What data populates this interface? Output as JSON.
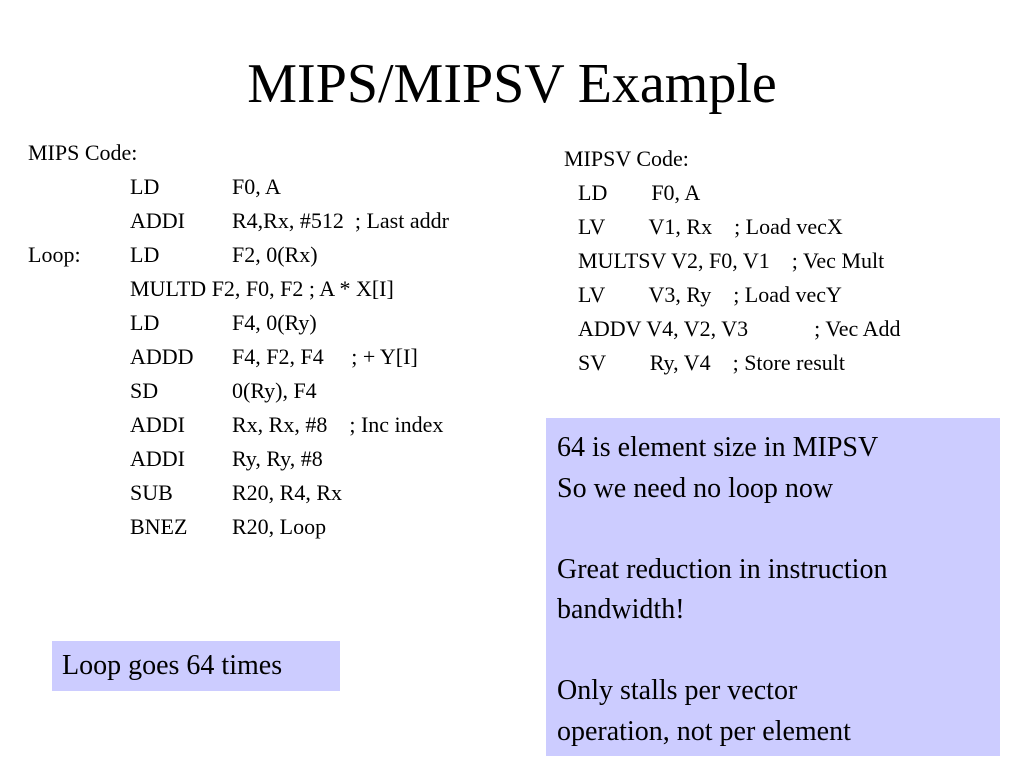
{
  "title": "MIPS/MIPSV Example",
  "mips": {
    "heading": "MIPS Code:",
    "lines": [
      {
        "label": "",
        "op": "LD",
        "args": "F0, A"
      },
      {
        "label": "",
        "op": "ADDI",
        "args": "R4,Rx, #512  ; Last addr"
      },
      {
        "label": "Loop:",
        "op": "LD",
        "args": "F2, 0(Rx)"
      },
      {
        "label": "",
        "op": "MULTD F2, F0, F2 ; A * X[I]",
        "args": ""
      },
      {
        "label": "",
        "op": "LD",
        "args": "F4, 0(Ry)"
      },
      {
        "label": "",
        "op": "ADDD",
        "args": "F4, F2, F4     ; + Y[I]"
      },
      {
        "label": "",
        "op": "SD",
        "args": "0(Ry), F4"
      },
      {
        "label": "",
        "op": "ADDI",
        "args": "Rx, Rx, #8    ; Inc index"
      },
      {
        "label": "",
        "op": "ADDI",
        "args": "Ry, Ry, #8"
      },
      {
        "label": "",
        "op": "SUB",
        "args": "R20, R4, Rx"
      },
      {
        "label": "",
        "op": "BNEZ",
        "args": "R20, Loop"
      }
    ]
  },
  "mipsv": {
    "heading": "MIPSV Code:",
    "lines": [
      {
        "text": "LD        F0, A"
      },
      {
        "text": "LV        V1, Rx    ; Load vecX"
      },
      {
        "text": "MULTSV V2, F0, V1    ; Vec Mult"
      },
      {
        "text": "LV        V3, Ry    ; Load vecY"
      },
      {
        "text": "ADDV V4, V2, V3            ; Vec Add"
      },
      {
        "text": "SV        Ry, V4    ; Store result"
      }
    ]
  },
  "callout_loop": "Loop goes 64 times",
  "callout_notes": "64 is element size in MIPSV\nSo we need no loop now\n\nGreat reduction in instruction\nbandwidth!\n\nOnly stalls per vector\noperation, not per element"
}
